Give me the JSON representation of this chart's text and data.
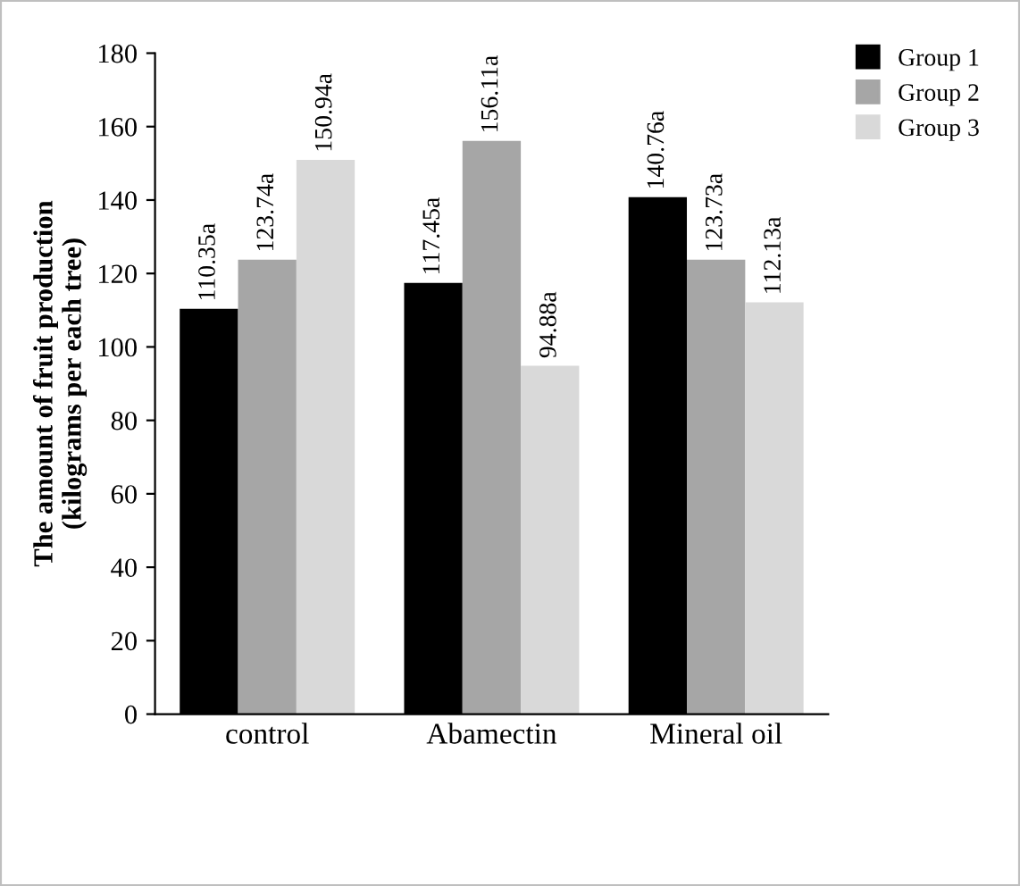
{
  "chart_data": {
    "type": "bar",
    "ylabel": "The amount of fruit production\n(kilograms per each tree)",
    "categories": [
      "control",
      "Abamectin",
      "Mineral oil"
    ],
    "series": [
      {
        "name": "Group 1",
        "color": "#000000",
        "values": [
          110.35,
          117.45,
          140.76
        ],
        "value_labels": [
          "110.35a",
          "117.45a",
          "140.76a"
        ]
      },
      {
        "name": "Group 2",
        "color": "#a6a6a6",
        "values": [
          123.74,
          156.11,
          123.73
        ],
        "value_labels": [
          "123.74a",
          "156.11a",
          "123.73a"
        ]
      },
      {
        "name": "Group 3",
        "color": "#d9d9d9",
        "values": [
          150.94,
          94.88,
          112.13
        ],
        "value_labels": [
          "150.94a",
          "94.88a",
          "112.13a"
        ]
      }
    ],
    "ylim": [
      0,
      180
    ],
    "yticks": [
      0,
      20,
      40,
      60,
      80,
      100,
      120,
      140,
      160,
      180
    ],
    "grid": false,
    "legend": "top right"
  }
}
